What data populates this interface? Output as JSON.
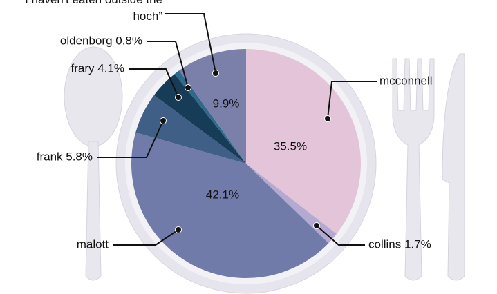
{
  "chart_data": {
    "type": "pie",
    "categories": [
      "mcconnell",
      "collins 1.7%",
      "malott",
      "frank 5.8%",
      "frary 4.1%",
      "oldenborg 0.8%",
      "“I haven't eaten outside the hoch”"
    ],
    "values": [
      35.5,
      1.7,
      42.1,
      5.8,
      4.1,
      0.8,
      9.9
    ],
    "value_labels": [
      "35.5%",
      null,
      "42.1%",
      null,
      null,
      null,
      "9.9%"
    ],
    "colors": [
      "#e4c4d9",
      "#b4a9d0",
      "#717ba9",
      "#3f5f86",
      "#163c58",
      "#2f6a8a",
      "#7b80aa"
    ]
  }
}
